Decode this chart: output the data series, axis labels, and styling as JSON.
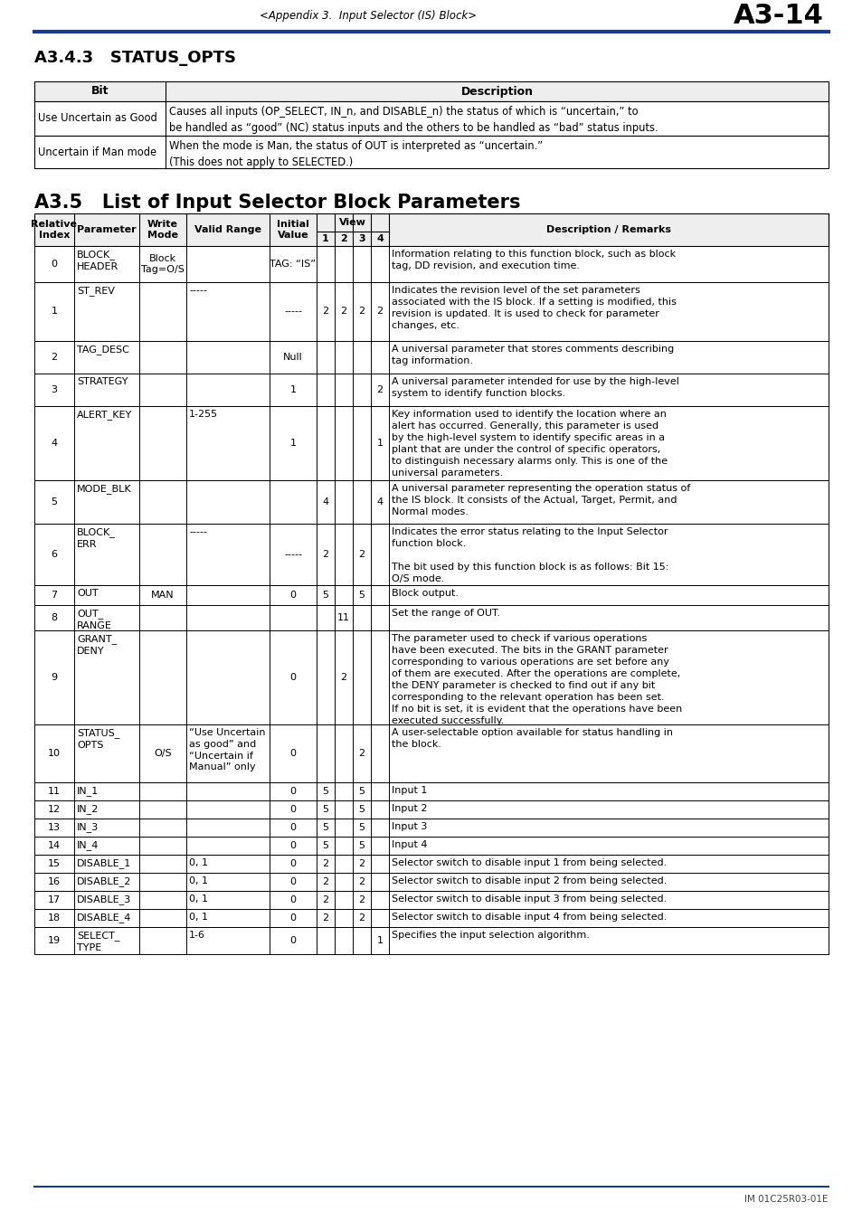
{
  "page_header_left": "<Appendix 3.  Input Selector (IS) Block>",
  "page_header_right": "A3-14",
  "header_line_color": "#1a3a8a",
  "section1_title": "A3.4.3   STATUS_OPTS",
  "section2_title": "A3.5   List of Input Selector Block Parameters",
  "footer_text": "IM 01C25R03-01E",
  "status_opts_rows": [
    [
      "Use Uncertain as Good",
      "Causes all inputs (OP_SELECT, IN_n, and DISABLE_n) the status of which is “uncertain,” to\nbe handled as “good” (NC) status inputs and the others to be handled as “bad” status inputs."
    ],
    [
      "Uncertain if Man mode",
      "When the mode is Man, the status of OUT is interpreted as “uncertain.”\n(This does not apply to SELECTED.)"
    ]
  ],
  "main_rows": [
    {
      "idx": "0",
      "param": "BLOCK_\nHEADER",
      "write": "Block\nTag=O/S",
      "valid": "",
      "init": "TAG: “IS”",
      "v1": "",
      "v2": "",
      "v3": "",
      "v4": "",
      "desc": "Information relating to this function block, such as block\ntag, DD revision, and execution time.",
      "rh": 40
    },
    {
      "idx": "1",
      "param": "ST_REV",
      "write": "",
      "valid": "-----",
      "init": "-----",
      "v1": "2",
      "v2": "2",
      "v3": "2",
      "v4": "2",
      "desc": "Indicates the revision level of the set parameters\nassociated with the IS block. If a setting is modified, this\nrevision is updated. It is used to check for parameter\nchanges, etc.",
      "rh": 65
    },
    {
      "idx": "2",
      "param": "TAG_DESC",
      "write": "",
      "valid": "",
      "init": "Null",
      "v1": "",
      "v2": "",
      "v3": "",
      "v4": "",
      "desc": "A universal parameter that stores comments describing\ntag information.",
      "rh": 36
    },
    {
      "idx": "3",
      "param": "STRATEGY",
      "write": "",
      "valid": "",
      "init": "1",
      "v1": "",
      "v2": "",
      "v3": "",
      "v4": "2",
      "desc": "A universal parameter intended for use by the high-level\nsystem to identify function blocks.",
      "rh": 36
    },
    {
      "idx": "4",
      "param": "ALERT_KEY",
      "write": "",
      "valid": "1-255",
      "init": "1",
      "v1": "",
      "v2": "",
      "v3": "",
      "v4": "1",
      "desc": "Key information used to identify the location where an\nalert has occurred. Generally, this parameter is used\nby the high-level system to identify specific areas in a\nplant that are under the control of specific operators,\nto distinguish necessary alarms only. This is one of the\nuniversal parameters.",
      "rh": 82
    },
    {
      "idx": "5",
      "param": "MODE_BLK",
      "write": "",
      "valid": "",
      "init": "",
      "v1": "4",
      "v2": "",
      "v3": "",
      "v4": "4",
      "desc": "A universal parameter representing the operation status of\nthe IS block. It consists of the Actual, Target, Permit, and\nNormal modes.",
      "rh": 48
    },
    {
      "idx": "6",
      "param": "BLOCK_\nERR",
      "write": "",
      "valid": "-----",
      "init": "-----",
      "v1": "2",
      "v2": "",
      "v3": "2",
      "v4": "",
      "desc": "Indicates the error status relating to the Input Selector\nfunction block.\n\nThe bit used by this function block is as follows: Bit 15:\nO/S mode.",
      "rh": 68
    },
    {
      "idx": "7",
      "param": "OUT",
      "write": "MAN",
      "valid": "",
      "init": "0",
      "v1": "5",
      "v2": "",
      "v3": "5",
      "v4": "",
      "desc": "Block output.",
      "rh": 22
    },
    {
      "idx": "8",
      "param": "OUT_\nRANGE",
      "write": "",
      "valid": "",
      "init": "",
      "v1": "",
      "v2": "11",
      "v3": "",
      "v4": "",
      "desc": "Set the range of OUT.",
      "rh": 28
    },
    {
      "idx": "9",
      "param": "GRANT_\nDENY",
      "write": "",
      "valid": "",
      "init": "0",
      "v1": "",
      "v2": "2",
      "v3": "",
      "v4": "",
      "desc": "The parameter used to check if various operations\nhave been executed. The bits in the GRANT parameter\ncorresponding to various operations are set before any\nof them are executed. After the operations are complete,\nthe DENY parameter is checked to find out if any bit\ncorresponding to the relevant operation has been set.\nIf no bit is set, it is evident that the operations have been\nexecuted successfully.",
      "rh": 104
    },
    {
      "idx": "10",
      "param": "STATUS_\nOPTS",
      "write": "O/S",
      "valid": "“Use Uncertain\nas good” and\n“Uncertain if\nManual” only",
      "init": "0",
      "v1": "",
      "v2": "",
      "v3": "2",
      "v4": "",
      "desc": "A user-selectable option available for status handling in\nthe block.",
      "rh": 64
    },
    {
      "idx": "11",
      "param": "IN_1",
      "write": "",
      "valid": "",
      "init": "0",
      "v1": "5",
      "v2": "",
      "v3": "5",
      "v4": "",
      "desc": "Input 1",
      "rh": 20
    },
    {
      "idx": "12",
      "param": "IN_2",
      "write": "",
      "valid": "",
      "init": "0",
      "v1": "5",
      "v2": "",
      "v3": "5",
      "v4": "",
      "desc": "Input 2",
      "rh": 20
    },
    {
      "idx": "13",
      "param": "IN_3",
      "write": "",
      "valid": "",
      "init": "0",
      "v1": "5",
      "v2": "",
      "v3": "5",
      "v4": "",
      "desc": "Input 3",
      "rh": 20
    },
    {
      "idx": "14",
      "param": "IN_4",
      "write": "",
      "valid": "",
      "init": "0",
      "v1": "5",
      "v2": "",
      "v3": "5",
      "v4": "",
      "desc": "Input 4",
      "rh": 20
    },
    {
      "idx": "15",
      "param": "DISABLE_1",
      "write": "",
      "valid": "0, 1",
      "init": "0",
      "v1": "2",
      "v2": "",
      "v3": "2",
      "v4": "",
      "desc": "Selector switch to disable input 1 from being selected.",
      "rh": 20
    },
    {
      "idx": "16",
      "param": "DISABLE_2",
      "write": "",
      "valid": "0, 1",
      "init": "0",
      "v1": "2",
      "v2": "",
      "v3": "2",
      "v4": "",
      "desc": "Selector switch to disable input 2 from being selected.",
      "rh": 20
    },
    {
      "idx": "17",
      "param": "DISABLE_3",
      "write": "",
      "valid": "0, 1",
      "init": "0",
      "v1": "2",
      "v2": "",
      "v3": "2",
      "v4": "",
      "desc": "Selector switch to disable input 3 from being selected.",
      "rh": 20
    },
    {
      "idx": "18",
      "param": "DISABLE_4",
      "write": "",
      "valid": "0, 1",
      "init": "0",
      "v1": "2",
      "v2": "",
      "v3": "2",
      "v4": "",
      "desc": "Selector switch to disable input 4 from being selected.",
      "rh": 20
    },
    {
      "idx": "19",
      "param": "SELECT_\nTYPE",
      "write": "",
      "valid": "1-6",
      "init": "0",
      "v1": "",
      "v2": "",
      "v3": "",
      "v4": "1",
      "desc": "Specifies the input selection algorithm.",
      "rh": 30
    }
  ]
}
